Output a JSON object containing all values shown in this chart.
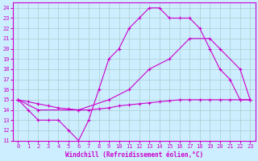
{
  "background_color": "#cceeff",
  "grid_color": "#aacccc",
  "line_color": "#cc00cc",
  "xlim": [
    -0.5,
    23.5
  ],
  "ylim": [
    11,
    24.5
  ],
  "xticks": [
    0,
    1,
    2,
    3,
    4,
    5,
    6,
    7,
    8,
    9,
    10,
    11,
    12,
    13,
    14,
    15,
    16,
    17,
    18,
    19,
    20,
    21,
    22,
    23
  ],
  "yticks": [
    11,
    12,
    13,
    14,
    15,
    16,
    17,
    18,
    19,
    20,
    21,
    22,
    23,
    24
  ],
  "xlabel": "Windchill (Refroidissement éolien,°C)",
  "line1_x": [
    0,
    1,
    2,
    3,
    4,
    5,
    6,
    7,
    8,
    9,
    10,
    11,
    12,
    13,
    14,
    15,
    16,
    17,
    18,
    19,
    20,
    21,
    22,
    23
  ],
  "line1_y": [
    15,
    14,
    13,
    13,
    13,
    12,
    11,
    13,
    16,
    19,
    20,
    22,
    23,
    24,
    24,
    23,
    23,
    23,
    22,
    20,
    18,
    17,
    15,
    15
  ],
  "line2_x": [
    0,
    1,
    2,
    3,
    4,
    5,
    6,
    7,
    8,
    9,
    10,
    11,
    12,
    13,
    14,
    15,
    16,
    17,
    18,
    19,
    20,
    21,
    22,
    23
  ],
  "line2_y": [
    15,
    14.8,
    14.6,
    14.4,
    14.2,
    14.1,
    14.0,
    14.0,
    14.1,
    14.2,
    14.4,
    14.5,
    14.6,
    14.7,
    14.8,
    14.9,
    15.0,
    15.0,
    15.0,
    15.0,
    15.0,
    15.0,
    15.0,
    15.0
  ],
  "line3_x": [
    0,
    2,
    6,
    9,
    11,
    13,
    15,
    17,
    19,
    20,
    22,
    23
  ],
  "line3_y": [
    15,
    14,
    14,
    15,
    16,
    18,
    19,
    21,
    21,
    20,
    18,
    15
  ],
  "tick_fontsize": 5,
  "xlabel_fontsize": 5.5
}
